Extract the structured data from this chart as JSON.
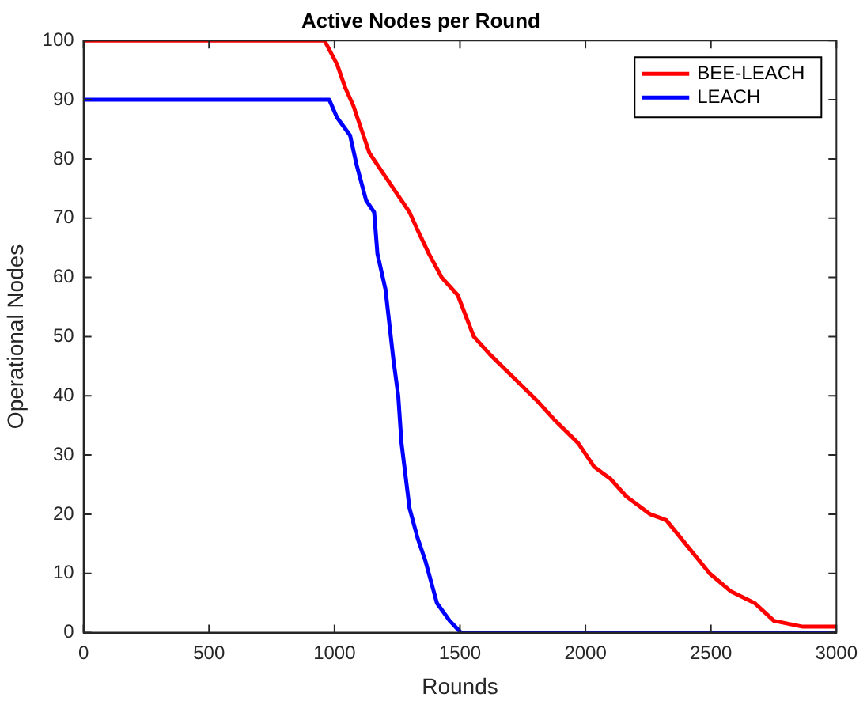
{
  "chart_data": {
    "type": "line",
    "title": "Active Nodes per Round",
    "xlabel": "Rounds",
    "ylabel": "Operational Nodes",
    "xlim": [
      0,
      3000
    ],
    "xticks": [
      0,
      500,
      1000,
      1500,
      2000,
      2500,
      3000
    ],
    "ylim": [
      0,
      100
    ],
    "yticks": [
      0,
      10,
      20,
      30,
      40,
      50,
      60,
      70,
      80,
      90,
      100
    ],
    "grid": false,
    "legend": "top right",
    "marker": "none",
    "line_style": "solid",
    "series": [
      {
        "name": "BEE-LEACH",
        "color": "#ff0000",
        "x": [
          0,
          960,
          1010,
          1043,
          1075,
          1107,
          1139,
          1171,
          1235,
          1299,
          1331,
          1376,
          1427,
          1491,
          1555,
          1619,
          1715,
          1811,
          1875,
          1971,
          2035,
          2099,
          2163,
          2258,
          2322,
          2418,
          2495,
          2578,
          2674,
          2751,
          2866,
          3000
        ],
        "values": [
          100,
          100,
          96,
          92,
          89,
          85,
          81,
          79,
          75,
          71,
          68,
          64,
          60,
          57,
          50,
          47,
          43,
          39,
          36,
          32,
          28,
          26,
          23,
          20,
          19,
          14,
          10,
          7,
          5,
          2,
          1,
          1
        ]
      },
      {
        "name": "LEACH",
        "color": "#0000ff",
        "x": [
          0,
          960,
          979,
          1010,
          1062,
          1088,
          1126,
          1158,
          1171,
          1203,
          1235,
          1254,
          1267,
          1299,
          1331,
          1363,
          1408,
          1459,
          1504,
          3000
        ],
        "values": [
          90,
          90,
          90,
          87,
          84,
          79,
          73,
          71,
          64,
          58,
          46,
          40,
          32,
          21,
          16,
          12,
          5,
          2,
          0,
          0
        ]
      }
    ]
  }
}
